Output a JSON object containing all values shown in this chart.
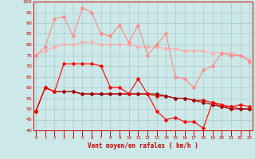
{
  "x": [
    0,
    1,
    2,
    3,
    4,
    5,
    6,
    7,
    8,
    9,
    10,
    11,
    12,
    13,
    14,
    15,
    16,
    17,
    18,
    19,
    20,
    21,
    22,
    23
  ],
  "line1": [
    75,
    77,
    79,
    80,
    80,
    81,
    81,
    80,
    80,
    80,
    80,
    79,
    79,
    79,
    78,
    78,
    77,
    77,
    77,
    76,
    76,
    76,
    75,
    73
  ],
  "line2": [
    75,
    79,
    92,
    93,
    84,
    97,
    95,
    85,
    84,
    89,
    81,
    89,
    75,
    80,
    85,
    65,
    64,
    60,
    68,
    70,
    76,
    75,
    75,
    72
  ],
  "line3": [
    49,
    60,
    58,
    71,
    71,
    71,
    71,
    70,
    60,
    60,
    57,
    64,
    57,
    49,
    45,
    46,
    44,
    44,
    41,
    53,
    52,
    51,
    52,
    51
  ],
  "line4": [
    49,
    60,
    58,
    58,
    58,
    57,
    57,
    57,
    57,
    57,
    57,
    57,
    57,
    56,
    56,
    55,
    55,
    54,
    54,
    53,
    51,
    51,
    50,
    50
  ],
  "line5": [
    49,
    60,
    58,
    58,
    58,
    57,
    57,
    57,
    57,
    57,
    57,
    57,
    57,
    57,
    56,
    55,
    55,
    54,
    53,
    52,
    51,
    50,
    50,
    50
  ],
  "color1": "#ffaaaa",
  "color2": "#ff8888",
  "color3": "#ff0000",
  "color4": "#dd0000",
  "color5": "#990000",
  "bg_color": "#cce8e8",
  "grid_color": "#aacccc",
  "text_color": "#cc0000",
  "xlabel": "Vent moyen/en rafales ( km/h )",
  "ylim": [
    40,
    100
  ],
  "xlim": [
    0,
    23
  ],
  "yticks": [
    40,
    45,
    50,
    55,
    60,
    65,
    70,
    75,
    80,
    85,
    90,
    95,
    100
  ]
}
